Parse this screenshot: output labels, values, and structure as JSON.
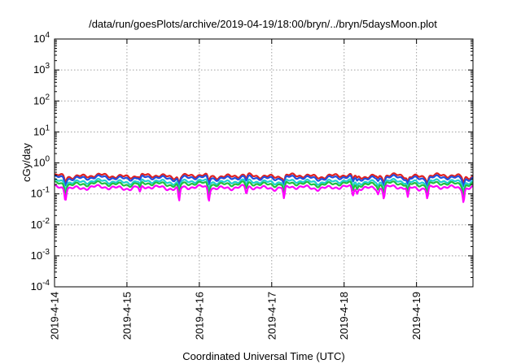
{
  "chart_data": {
    "type": "line",
    "title": "/data/run/goesPlots/archive/2019-04-19/18:00/bryn/../bryn/5daysMoon.plot",
    "xlabel": "Coordinated Universal Time (UTC)",
    "ylabel": "cGy/day",
    "yscale": "log",
    "ylim": [
      0.0001,
      10000
    ],
    "xlim": [
      0,
      5.78
    ],
    "x_unit": "days since 2019-4-14 00:00 UTC",
    "grid": true,
    "legend": "none",
    "x_tick_labels": [
      "2019-4-14",
      "2019-4-15",
      "2019-4-16",
      "2019-4-17",
      "2019-4-18",
      "2019-4-19"
    ],
    "x_tick_values": [
      0,
      1,
      2,
      3,
      4,
      5
    ],
    "y_tick_labels": [
      {
        "base": "10",
        "exp": "4"
      },
      {
        "base": "10",
        "exp": "3"
      },
      {
        "base": "10",
        "exp": "2"
      },
      {
        "base": "10",
        "exp": "1"
      },
      {
        "base": "10",
        "exp": "0"
      },
      {
        "base": "10",
        "exp": "-1"
      },
      {
        "base": "10",
        "exp": "-2"
      },
      {
        "base": "10",
        "exp": "-3"
      },
      {
        "base": "10",
        "exp": "-4"
      }
    ],
    "y_tick_values": [
      10000,
      1000,
      100,
      10,
      1,
      0.1,
      0.01,
      0.001,
      0.0001
    ],
    "series": [
      {
        "color": "#e02020",
        "base": 0.38
      },
      {
        "color": "#2050e0",
        "base": 0.33
      },
      {
        "color": "#20d0d0",
        "base": 0.25
      },
      {
        "color": "#20c040",
        "base": 0.21
      },
      {
        "color": "#ff00ff",
        "base": 0.16
      }
    ],
    "dips": [
      {
        "x": 0.15,
        "depth": 0.55
      },
      {
        "x": 1.18,
        "depth": 0.35
      },
      {
        "x": 1.72,
        "depth": 0.65
      },
      {
        "x": 2.13,
        "depth": 0.6
      },
      {
        "x": 2.65,
        "depth": 0.4
      },
      {
        "x": 3.17,
        "depth": 0.6
      },
      {
        "x": 4.12,
        "depth": 0.45
      },
      {
        "x": 4.18,
        "depth": 0.35
      },
      {
        "x": 4.47,
        "depth": 0.35
      },
      {
        "x": 4.55,
        "depth": 0.55
      },
      {
        "x": 4.88,
        "depth": 0.55
      },
      {
        "x": 5.15,
        "depth": 0.55
      },
      {
        "x": 5.65,
        "depth": 0.6
      }
    ]
  }
}
